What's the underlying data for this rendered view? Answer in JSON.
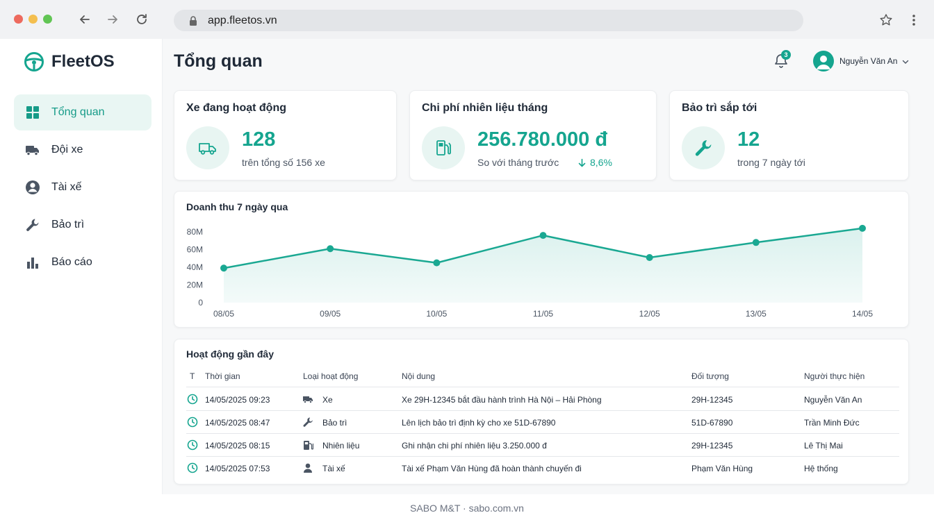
{
  "browser": {
    "url": "app.fleetos.vn"
  },
  "app": {
    "name": "FleetOS",
    "brand_color": "#15a58f"
  },
  "sidebar": {
    "items": [
      {
        "label": "Tổng quan",
        "icon": "grid-icon",
        "active": true
      },
      {
        "label": "Đội xe",
        "icon": "truck-icon"
      },
      {
        "label": "Tài xế",
        "icon": "driver-icon"
      },
      {
        "label": "Bảo trì",
        "icon": "wrench-icon"
      },
      {
        "label": "Báo cáo",
        "icon": "bar-chart-icon"
      }
    ]
  },
  "header": {
    "title": "Tổng quan",
    "notification_count": "3",
    "user_name": "Nguyễn Văn An"
  },
  "kpis": [
    {
      "title": "Xe đang hoạt động",
      "value": "128",
      "sub": "trên tổng số 156 xe",
      "icon": "truck-icon"
    },
    {
      "title": "Chi phí nhiên liệu tháng",
      "value": "256.780.000 đ",
      "sub": "So với tháng trước",
      "change": "8,6%",
      "change_direction": "down",
      "icon": "fuel-pump-icon"
    },
    {
      "title": "Bảo trì sắp tới",
      "value": "12",
      "sub": "trong 7 ngày tới",
      "icon": "wrench-icon"
    }
  ],
  "revenue_chart": {
    "title": "Doanh thu 7 ngày qua"
  },
  "chart_data": {
    "type": "area",
    "title": "Doanh thu 7 ngày qua",
    "categories": [
      "08/05",
      "09/05",
      "10/05",
      "11/05",
      "12/05",
      "13/05",
      "14/05"
    ],
    "values": [
      39,
      61,
      45,
      76,
      51,
      68,
      84
    ],
    "y_ticks": [
      "0",
      "20M",
      "40M",
      "60M",
      "80M"
    ],
    "ylim": [
      0,
      80
    ],
    "unit": "M",
    "grid": false,
    "color": "#1aa892"
  },
  "activity": {
    "title": "Hoạt động gần đây",
    "columns": [
      "T",
      "Thời gian",
      "Loại hoạt động",
      "Nội dung",
      "Đối tượng",
      "Người thực hiện"
    ],
    "rows": [
      {
        "time": "14/05/2025 09:23",
        "type": "Xe",
        "type_icon": "truck-icon",
        "content": "Xe 29H-12345 bắt đầu hành trình Hà Nội – Hải Phòng",
        "target": "29H-12345",
        "actor": "Nguyễn Văn An"
      },
      {
        "time": "14/05/2025 08:47",
        "type": "Bảo trì",
        "type_icon": "wrench-icon",
        "content": "Lên lịch bảo trì định kỳ cho xe 51D-67890",
        "target": "51D-67890",
        "actor": "Trần Minh Đức"
      },
      {
        "time": "14/05/2025 08:15",
        "type": "Nhiên liệu",
        "type_icon": "fuel-pump-icon",
        "content": "Ghi nhận chi phí nhiên liệu 3.250.000 đ",
        "target": "29H-12345",
        "actor": "Lê Thị Mai"
      },
      {
        "time": "14/05/2025 07:53",
        "type": "Tài xế",
        "type_icon": "person-icon",
        "content": "Tài xế Phạm Văn Hùng đã hoàn thành chuyến đi",
        "target": "Phạm Văn Hùng",
        "actor": "Hệ thống"
      }
    ]
  },
  "footer": {
    "text": "SABO M&T · sabo.com.vn"
  }
}
